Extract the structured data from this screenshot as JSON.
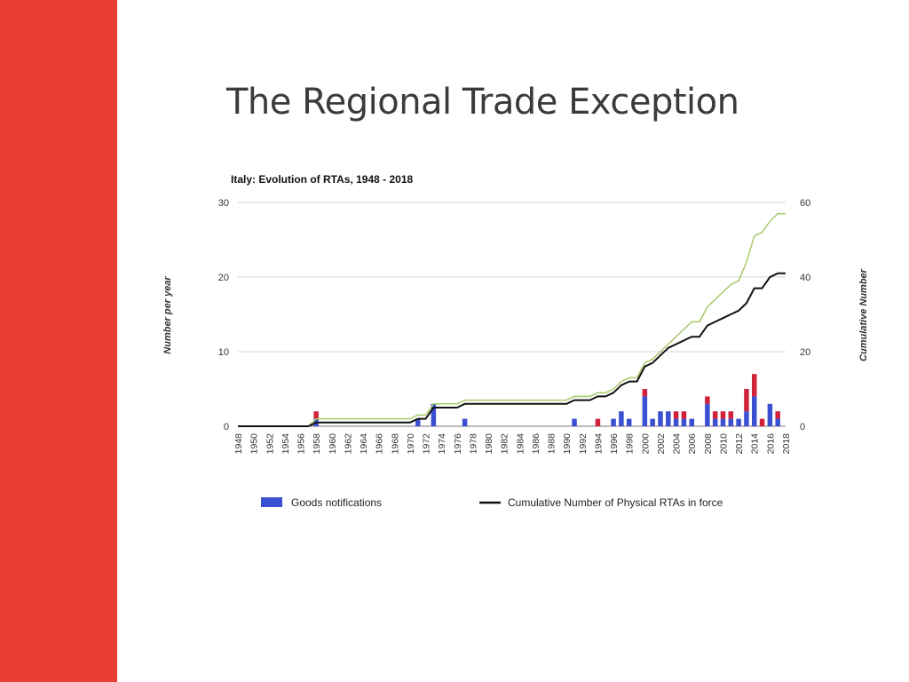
{
  "slide": {
    "title": "The Regional Trade Exception",
    "accent_color": "#e93d34"
  },
  "chart_data": {
    "type": "bar",
    "title": "Italy: Evolution of RTAs, 1948 - 2018",
    "ylabel": "Number per year",
    "y2label": "Cumulative Number",
    "ylim": [
      0,
      30
    ],
    "y2lim": [
      0,
      60
    ],
    "yticks": [
      0,
      10,
      20,
      30
    ],
    "y2ticks": [
      0,
      20,
      40,
      60
    ],
    "xlim": [
      1948,
      2018
    ],
    "xtick_labels": [
      "1948",
      "1950",
      "1952",
      "1954",
      "1956",
      "1958",
      "1960",
      "1962",
      "1964",
      "1966",
      "1968",
      "1970",
      "1972",
      "1974",
      "1976",
      "1978",
      "1980",
      "1982",
      "1984",
      "1986",
      "1988",
      "1990",
      "1992",
      "1994",
      "1996",
      "1998",
      "2000",
      "2002",
      "2004",
      "2006",
      "2008",
      "2010",
      "2012",
      "2014",
      "2016",
      "2018"
    ],
    "grid": true,
    "bar_series": [
      {
        "name": "Goods notifications",
        "color": "#3b4fd1",
        "points": [
          [
            1958,
            1
          ],
          [
            1971,
            1
          ],
          [
            1973,
            3
          ],
          [
            1977,
            1
          ],
          [
            1991,
            1
          ],
          [
            1996,
            1
          ],
          [
            1997,
            2
          ],
          [
            1998,
            1
          ],
          [
            2000,
            4
          ],
          [
            2001,
            1
          ],
          [
            2002,
            2
          ],
          [
            2003,
            2
          ],
          [
            2004,
            1
          ],
          [
            2005,
            1
          ],
          [
            2006,
            1
          ],
          [
            2008,
            3
          ],
          [
            2009,
            1
          ],
          [
            2010,
            1
          ],
          [
            2011,
            1
          ],
          [
            2012,
            1
          ],
          [
            2013,
            2
          ],
          [
            2014,
            4
          ],
          [
            2016,
            3
          ],
          [
            2017,
            1
          ]
        ]
      },
      {
        "color": "#d0233b",
        "points": [
          [
            1958,
            1
          ],
          [
            1994,
            1
          ],
          [
            2000,
            1
          ],
          [
            2004,
            1
          ],
          [
            2005,
            1
          ],
          [
            2008,
            1
          ],
          [
            2009,
            1
          ],
          [
            2010,
            1
          ],
          [
            2011,
            1
          ],
          [
            2013,
            3
          ],
          [
            2014,
            3
          ],
          [
            2015,
            1
          ],
          [
            2017,
            1
          ]
        ]
      }
    ],
    "line_series": [
      {
        "color": "#a8c96a",
        "points": [
          [
            1948,
            0
          ],
          [
            1957,
            0
          ],
          [
            1958,
            2
          ],
          [
            1970,
            2
          ],
          [
            1971,
            3
          ],
          [
            1972,
            3
          ],
          [
            1973,
            6
          ],
          [
            1976,
            6
          ],
          [
            1977,
            7
          ],
          [
            1990,
            7
          ],
          [
            1991,
            8
          ],
          [
            1993,
            8
          ],
          [
            1994,
            9
          ],
          [
            1995,
            9
          ],
          [
            1996,
            10
          ],
          [
            1997,
            12
          ],
          [
            1998,
            13
          ],
          [
            1999,
            13
          ],
          [
            2000,
            17
          ],
          [
            2001,
            18
          ],
          [
            2002,
            20
          ],
          [
            2003,
            22
          ],
          [
            2004,
            24
          ],
          [
            2005,
            26
          ],
          [
            2006,
            28
          ],
          [
            2007,
            28
          ],
          [
            2008,
            32
          ],
          [
            2009,
            34
          ],
          [
            2010,
            36
          ],
          [
            2011,
            38
          ],
          [
            2012,
            39
          ],
          [
            2013,
            44
          ],
          [
            2014,
            51
          ],
          [
            2015,
            52
          ],
          [
            2016,
            55
          ],
          [
            2017,
            57
          ],
          [
            2018,
            57
          ]
        ]
      },
      {
        "name": "Cumulative Number of Physical RTAs in force",
        "color": "#111111",
        "points": [
          [
            1948,
            0
          ],
          [
            1957,
            0
          ],
          [
            1958,
            1
          ],
          [
            1970,
            1
          ],
          [
            1971,
            2
          ],
          [
            1972,
            2
          ],
          [
            1973,
            5
          ],
          [
            1976,
            5
          ],
          [
            1977,
            6
          ],
          [
            1990,
            6
          ],
          [
            1991,
            7
          ],
          [
            1993,
            7
          ],
          [
            1994,
            8
          ],
          [
            1995,
            8
          ],
          [
            1996,
            9
          ],
          [
            1997,
            11
          ],
          [
            1998,
            12
          ],
          [
            1999,
            12
          ],
          [
            2000,
            16
          ],
          [
            2001,
            17
          ],
          [
            2002,
            19
          ],
          [
            2003,
            21
          ],
          [
            2004,
            22
          ],
          [
            2005,
            23
          ],
          [
            2006,
            24
          ],
          [
            2007,
            24
          ],
          [
            2008,
            27
          ],
          [
            2009,
            28
          ],
          [
            2010,
            29
          ],
          [
            2011,
            30
          ],
          [
            2012,
            31
          ],
          [
            2013,
            33
          ],
          [
            2014,
            37
          ],
          [
            2015,
            37
          ],
          [
            2016,
            40
          ],
          [
            2017,
            41
          ],
          [
            2018,
            41
          ]
        ]
      }
    ],
    "legend": {
      "position": "bottom",
      "items": [
        {
          "label": "Goods notifications",
          "color": "#3b4fd1",
          "kind": "bar"
        },
        {
          "label": "Cumulative Number of Physical RTAs in force",
          "color": "#111111",
          "kind": "line"
        }
      ]
    }
  }
}
